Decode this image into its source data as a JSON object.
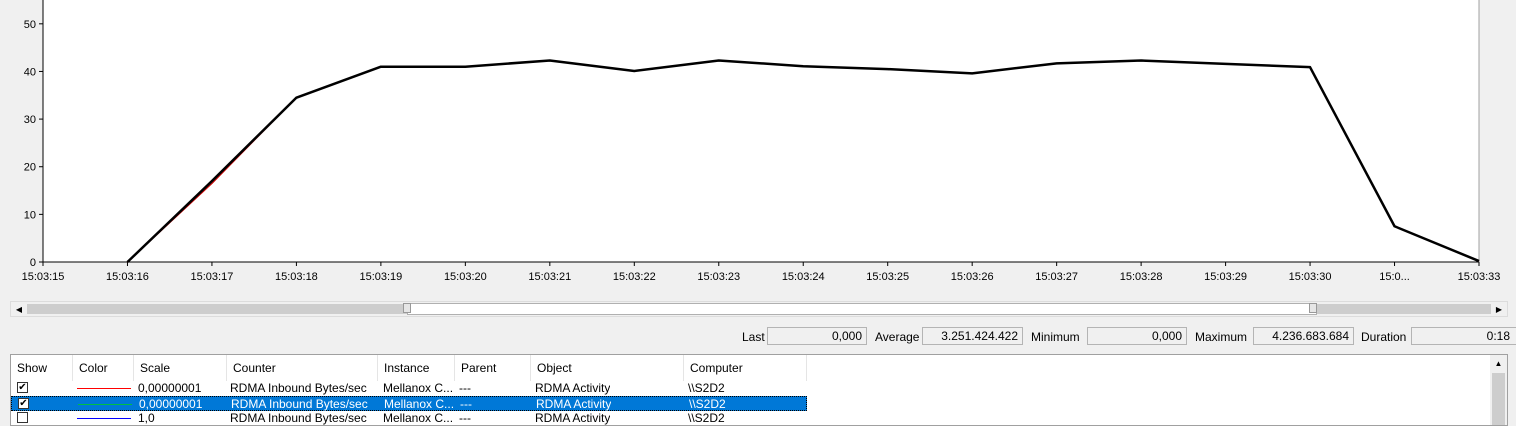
{
  "chart_data": {
    "type": "line",
    "title": "",
    "xlabel": "",
    "ylabel": "",
    "ylim": [
      0,
      55
    ],
    "yticks": [
      0,
      10,
      20,
      30,
      40,
      50
    ],
    "x_tick_labels": [
      "15:03:15",
      "15:03:16",
      "15:03:17",
      "15:03:18",
      "15:03:19",
      "15:03:20",
      "15:03:21",
      "15:03:22",
      "15:03:23",
      "15:03:24",
      "15:03:25",
      "15:03:26",
      "15:03:27",
      "15:03:28",
      "15:03:29",
      "15:03:30",
      "15:0...",
      "15:03:33"
    ],
    "grid": false,
    "series": [
      {
        "color": "#000000",
        "values": [
          0,
          0,
          17,
          34.5,
          41,
          41,
          42.3,
          40.1,
          42.3,
          41.1,
          40.5,
          39.6,
          41.7,
          42.3,
          41.6,
          40.9,
          7.5,
          0.2
        ]
      },
      {
        "color": "#cc0000",
        "values": [
          0,
          0,
          16.5,
          34.5,
          41,
          41,
          42.3,
          40.1,
          42.3,
          41.1,
          40.5,
          39.6,
          41.7,
          42.3,
          41.6,
          40.9,
          7.5,
          0.2
        ]
      }
    ]
  },
  "stats": {
    "last_label": "Last",
    "last_value": "0,000",
    "average_label": "Average",
    "average_value": "3.251.424.422",
    "minimum_label": "Minimum",
    "minimum_value": "0,000",
    "maximum_label": "Maximum",
    "maximum_value": "4.236.683.684",
    "duration_label": "Duration",
    "duration_value": "0:18"
  },
  "table": {
    "headers": [
      "Show",
      "Color",
      "Scale",
      "Counter",
      "Instance",
      "Parent",
      "Object",
      "Computer"
    ],
    "rows": [
      {
        "checked": "✔",
        "color": "#ff0000",
        "scale": "0,00000001",
        "counter": "RDMA Inbound Bytes/sec",
        "instance": "Mellanox C...",
        "parent": "---",
        "object": "RDMA Activity",
        "computer": "\\\\S2D2"
      },
      {
        "checked": "✔",
        "color": "#00c040",
        "scale": "0,00000001",
        "counter": "RDMA Inbound Bytes/sec",
        "instance": "Mellanox C...",
        "parent": "---",
        "object": "RDMA Activity",
        "computer": "\\\\S2D2"
      },
      {
        "checked": "",
        "color": "#0000ff",
        "scale": "1,0",
        "counter": "RDMA Inbound Bytes/sec",
        "instance": "Mellanox C...",
        "parent": "---",
        "object": "RDMA Activity",
        "computer": "\\\\S2D2"
      }
    ]
  },
  "icons": {
    "scroll_left": "◀",
    "scroll_right": "▶",
    "scroll_up": "▲"
  }
}
